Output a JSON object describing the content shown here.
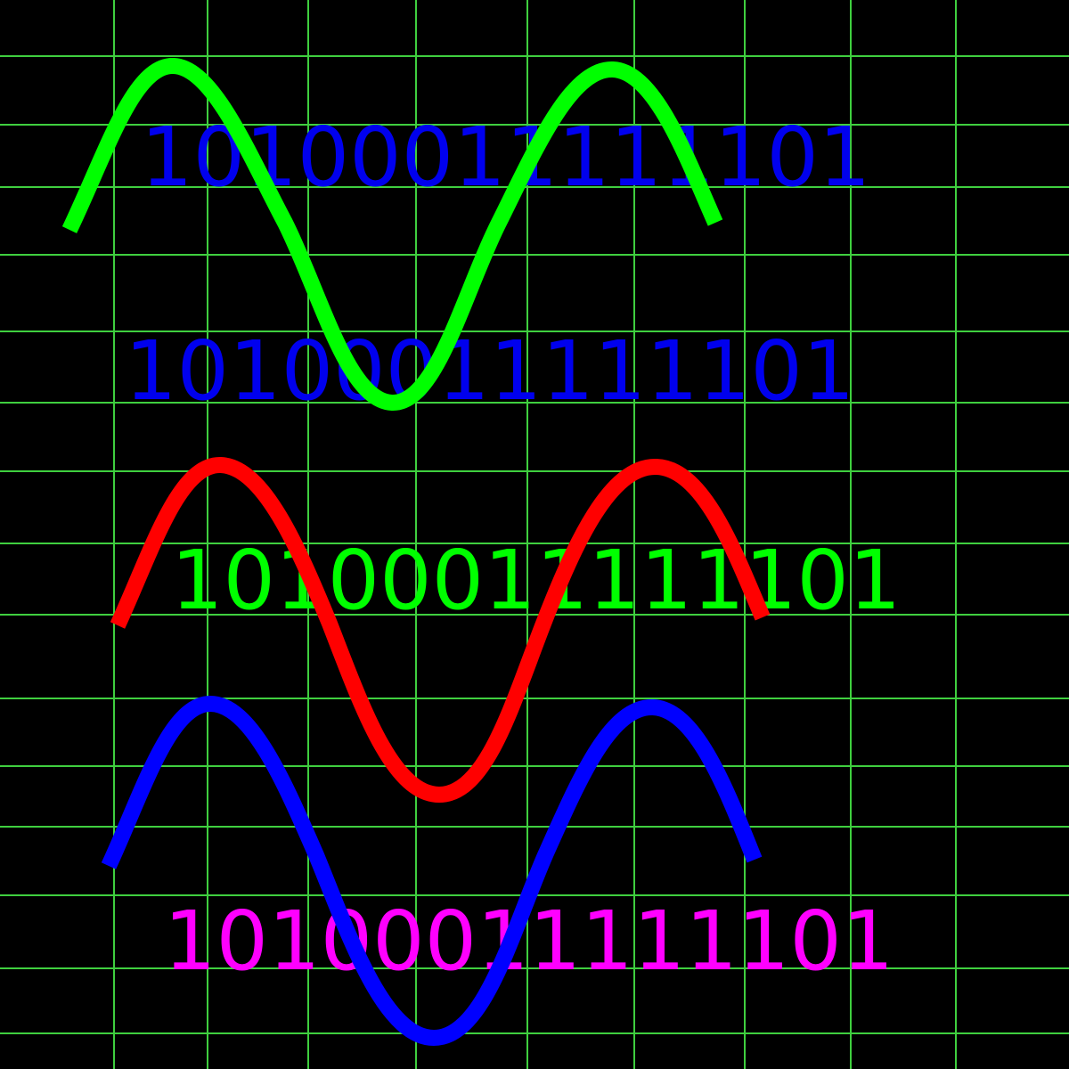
{
  "colors": {
    "background": "#000000",
    "grid": "#3fcf3f",
    "wave_green": "#00ff00",
    "wave_red": "#ff0000",
    "wave_blue": "#0000ff",
    "text_blue": "#0000ee",
    "text_green": "#00ff00",
    "text_magenta": "#ff00ff"
  },
  "binary_lines": [
    {
      "text": "10100011111101",
      "color": "#0000ee"
    },
    {
      "text": "10100011111101",
      "color": "#0000ee"
    },
    {
      "text": "10100011111101",
      "color": "#00ff00"
    },
    {
      "text": "10100011111101",
      "color": "#ff00ff"
    }
  ]
}
